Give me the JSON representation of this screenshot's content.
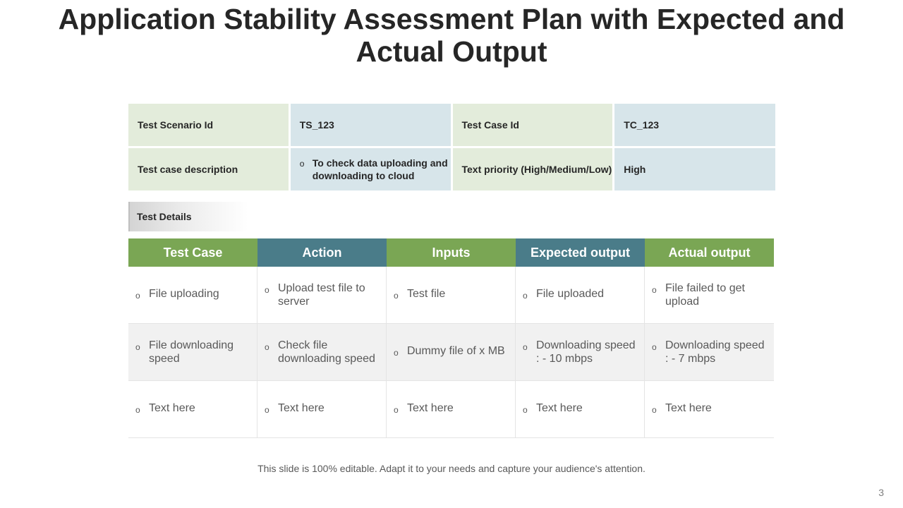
{
  "title": "Application Stability Assessment Plan with Expected and Actual Output",
  "info": {
    "row1": [
      "Test Scenario Id",
      "TS_123",
      "Test Case Id",
      "TC_123"
    ],
    "row2": {
      "label": "Test case description",
      "description": "To check data uploading and downloading to cloud",
      "priority_label": "Text priority (High/Medium/Low)",
      "priority_value": "High"
    }
  },
  "details_label": "Test Details",
  "table": {
    "headers": [
      "Test Case",
      "Action",
      "Inputs",
      "Expected output",
      "Actual output"
    ],
    "rows": [
      [
        "File uploading",
        "Upload test file to server",
        "Test file",
        "File uploaded",
        "File failed to get upload"
      ],
      [
        "File downloading speed",
        "Check file downloading speed",
        "Dummy file of x MB",
        "Downloading speed : - 10 mbps",
        "Downloading speed : - 7 mbps"
      ],
      [
        "Text here",
        "Text here",
        "Text here",
        "Text here",
        "Text here"
      ]
    ]
  },
  "bullet_marker": "o",
  "footer": "This slide is 100% editable. Adapt it to your needs and capture your audience's attention.",
  "page_number": "3",
  "colors": {
    "header_green": "#7aa654",
    "header_teal": "#4a7c89",
    "cell_green": "#e3ecdb",
    "cell_blue": "#d7e5ea"
  }
}
